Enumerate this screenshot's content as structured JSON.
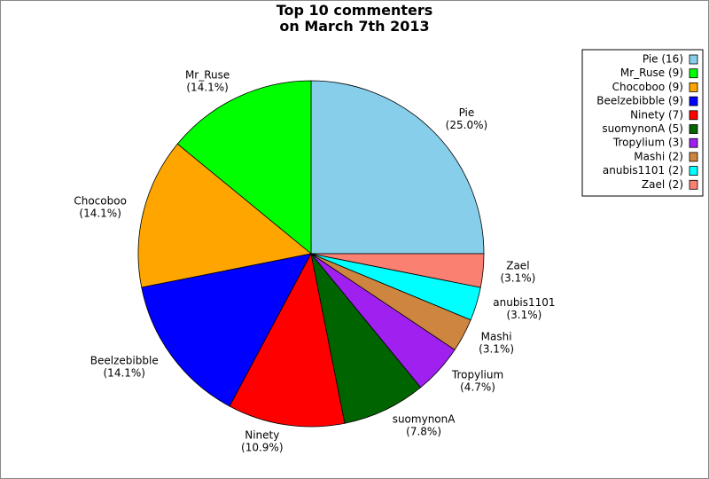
{
  "chart_data": {
    "type": "pie",
    "title": "Top 10 commenters\non March 7th 2013",
    "categories": [
      "Pie",
      "Mr_Ruse",
      "Chocoboo",
      "Beelzebibble",
      "Ninety",
      "suomynonA",
      "Tropylium",
      "Mashi",
      "anubis1101",
      "Zael"
    ],
    "values": [
      16,
      9,
      9,
      9,
      7,
      5,
      3,
      2,
      2,
      2
    ],
    "percent_labels": [
      "(25.0%)",
      "(14.1%)",
      "(14.1%)",
      "(14.1%)",
      "(10.9%)",
      "(7.8%)",
      "(4.7%)",
      "(3.1%)",
      "(3.1%)",
      "(3.1%)"
    ],
    "legend_labels": [
      "Pie (16)",
      "Mr_Ruse (9)",
      "Chocoboo (9)",
      "Beelzebibble (9)",
      "Ninety (7)",
      "suomynonA (5)",
      "Tropylium (3)",
      "Mashi (2)",
      "anubis1101 (2)",
      "Zael (2)"
    ],
    "colors": [
      "#87ceeb",
      "#00ff00",
      "#ffa500",
      "#0000ff",
      "#ff0000",
      "#006400",
      "#a020f0",
      "#cd853f",
      "#00ffff",
      "#fa8072"
    ],
    "legend_position": "upper right"
  }
}
